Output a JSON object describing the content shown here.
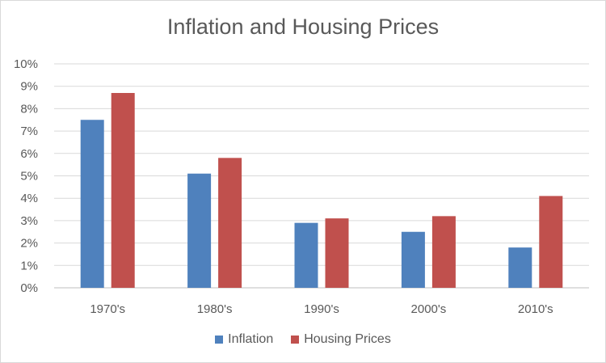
{
  "chart_data": {
    "type": "bar",
    "title": "Inflation and Housing Prices",
    "xlabel": "",
    "ylabel": "",
    "categories": [
      "1970's",
      "1980's",
      "1990's",
      "2000's",
      "2010's"
    ],
    "series": [
      {
        "name": "Inflation",
        "color": "#4F81BD",
        "values": [
          7.5,
          5.1,
          2.9,
          2.5,
          1.8
        ]
      },
      {
        "name": "Housing Prices",
        "color": "#C0504D",
        "values": [
          8.7,
          5.8,
          3.1,
          3.2,
          4.1
        ]
      }
    ],
    "ylim": [
      0,
      10
    ],
    "yticks": [
      "0%",
      "1%",
      "2%",
      "3%",
      "4%",
      "5%",
      "6%",
      "7%",
      "8%",
      "9%",
      "10%"
    ],
    "grid": true,
    "legend_position": "bottom"
  }
}
